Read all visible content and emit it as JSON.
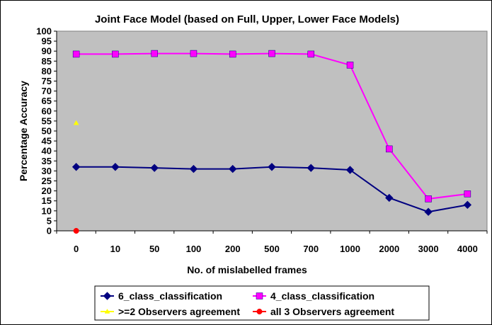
{
  "chart_data": {
    "type": "line",
    "title": "Joint Face Model (based on Full, Upper, Lower Face Models)",
    "xlabel": "No. of mislabelled frames",
    "ylabel": "Percentage Accuracy",
    "categories": [
      "0",
      "10",
      "50",
      "100",
      "200",
      "500",
      "700",
      "1000",
      "2000",
      "3000",
      "4000"
    ],
    "ylim": [
      0,
      100
    ],
    "ystep": 5,
    "plot_background": "#c0c0c0",
    "grid": false,
    "legend_position": "bottom",
    "series": [
      {
        "name": "6_class_classification",
        "color": "#000080",
        "marker": "diamond",
        "line": true,
        "values": [
          32,
          32,
          31.5,
          31,
          31,
          32,
          31.5,
          30.5,
          16.5,
          9.5,
          13
        ]
      },
      {
        "name": "4_class_classification",
        "color": "#ff00ff",
        "marker": "square",
        "line": true,
        "values": [
          88.5,
          88.5,
          88.8,
          88.8,
          88.5,
          88.8,
          88.5,
          83,
          41,
          16,
          18.5
        ]
      },
      {
        "name": ">=2 Observers agreement",
        "color": "#ffff00",
        "marker": "triangle",
        "line": false,
        "values": [
          54,
          null,
          null,
          null,
          null,
          null,
          null,
          null,
          null,
          null,
          null
        ]
      },
      {
        "name": "all 3 Observers agreement",
        "color": "#ff0000",
        "marker": "circle",
        "line": false,
        "values": [
          0,
          null,
          null,
          null,
          null,
          null,
          null,
          null,
          null,
          null,
          null
        ]
      }
    ]
  }
}
